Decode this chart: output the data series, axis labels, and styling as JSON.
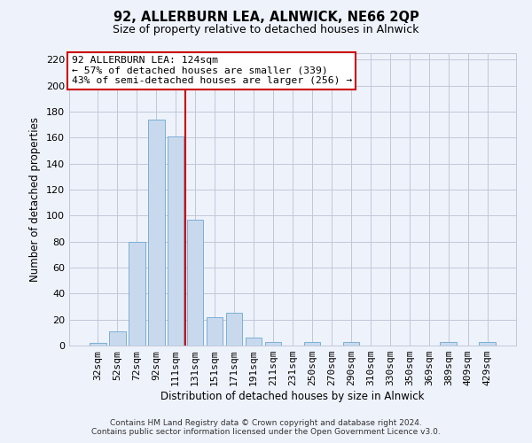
{
  "title": "92, ALLERBURN LEA, ALNWICK, NE66 2QP",
  "subtitle": "Size of property relative to detached houses in Alnwick",
  "xlabel": "Distribution of detached houses by size in Alnwick",
  "ylabel": "Number of detached properties",
  "bar_labels": [
    "32sqm",
    "52sqm",
    "72sqm",
    "92sqm",
    "111sqm",
    "131sqm",
    "151sqm",
    "171sqm",
    "191sqm",
    "211sqm",
    "231sqm",
    "250sqm",
    "270sqm",
    "290sqm",
    "310sqm",
    "330sqm",
    "350sqm",
    "369sqm",
    "389sqm",
    "409sqm",
    "429sqm"
  ],
  "bar_values": [
    2,
    11,
    80,
    174,
    161,
    97,
    22,
    25,
    6,
    3,
    0,
    3,
    0,
    3,
    0,
    0,
    0,
    0,
    3,
    0,
    3
  ],
  "bar_color": "#c8d9ee",
  "bar_edge_color": "#7bafd4",
  "ylim": [
    0,
    225
  ],
  "yticks": [
    0,
    20,
    40,
    60,
    80,
    100,
    120,
    140,
    160,
    180,
    200,
    220
  ],
  "property_line_x": 4.5,
  "property_line_color": "#cc0000",
  "annotation_title": "92 ALLERBURN LEA: 124sqm",
  "annotation_line1": "← 57% of detached houses are smaller (339)",
  "annotation_line2": "43% of semi-detached houses are larger (256) →",
  "footer_line1": "Contains HM Land Registry data © Crown copyright and database right 2024.",
  "footer_line2": "Contains public sector information licensed under the Open Government Licence v3.0.",
  "background_color": "#eef2fb",
  "plot_bg_color": "#eef2fb"
}
